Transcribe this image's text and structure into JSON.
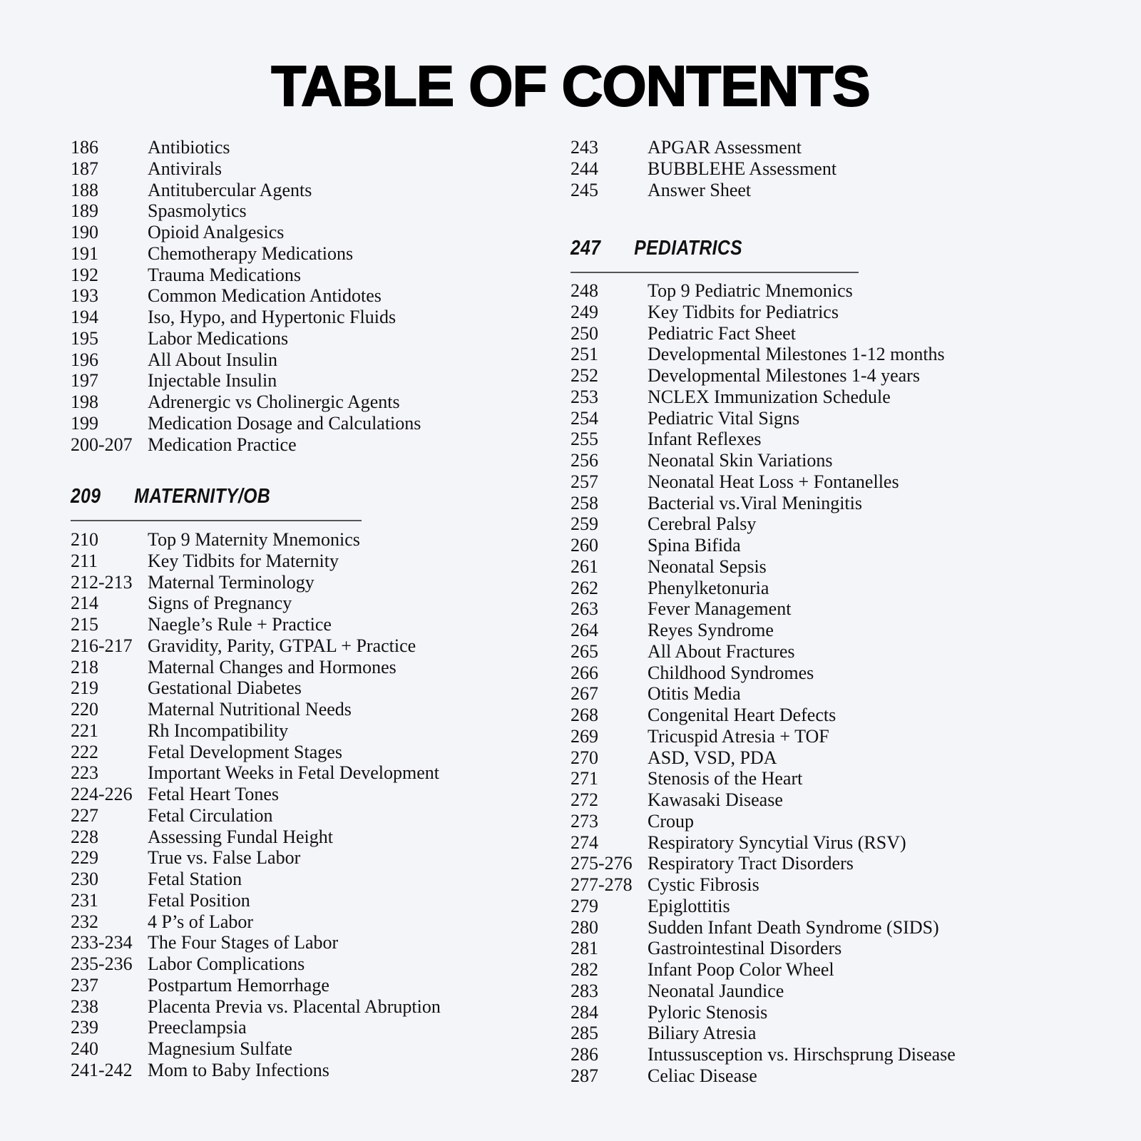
{
  "title": "TABLE OF CONTENTS",
  "left_column": {
    "items": [
      {
        "page": "186",
        "title": "Antibiotics"
      },
      {
        "page": "187",
        "title": "Antivirals"
      },
      {
        "page": "188",
        "title": "Antitubercular Agents"
      },
      {
        "page": "189",
        "title": "Spasmolytics"
      },
      {
        "page": "190",
        "title": "Opioid Analgesics"
      },
      {
        "page": "191",
        "title": "Chemotherapy Medications"
      },
      {
        "page": "192",
        "title": "Trauma Medications"
      },
      {
        "page": "193",
        "title": "Common Medication Antidotes"
      },
      {
        "page": "194",
        "title": "Iso, Hypo, and Hypertonic Fluids"
      },
      {
        "page": "195",
        "title": "Labor Medications"
      },
      {
        "page": "196",
        "title": "All About Insulin"
      },
      {
        "page": "197",
        "title": "Injectable Insulin"
      },
      {
        "page": "198",
        "title": "Adrenergic vs Cholinergic Agents"
      },
      {
        "page": "199",
        "title": "Medication Dosage and Calculations"
      },
      {
        "page": "200-207",
        "title": "Medication Practice"
      }
    ],
    "section": {
      "page": "209",
      "title": "MATERNITY/OB"
    },
    "section_items": [
      {
        "page": "210",
        "title": "Top 9 Maternity Mnemonics"
      },
      {
        "page": "211",
        "title": "Key Tidbits for Maternity"
      },
      {
        "page": "212-213",
        "title": "Maternal Terminology"
      },
      {
        "page": "214",
        "title": "Signs of Pregnancy"
      },
      {
        "page": "215",
        "title": "Naegle’s Rule + Practice"
      },
      {
        "page": "216-217",
        "title": "Gravidity, Parity, GTPAL + Practice"
      },
      {
        "page": "218",
        "title": "Maternal Changes and Hormones"
      },
      {
        "page": "219",
        "title": "Gestational Diabetes"
      },
      {
        "page": "220",
        "title": "Maternal Nutritional Needs"
      },
      {
        "page": "221",
        "title": "Rh Incompatibility"
      },
      {
        "page": "222",
        "title": "Fetal Development Stages"
      },
      {
        "page": "223",
        "title": "Important Weeks in Fetal Development"
      },
      {
        "page": "224-226",
        "title": "Fetal Heart Tones"
      },
      {
        "page": "227",
        "title": "Fetal Circulation"
      },
      {
        "page": "228",
        "title": "Assessing Fundal Height"
      },
      {
        "page": "229",
        "title": "True vs. False Labor"
      },
      {
        "page": "230",
        "title": "Fetal Station"
      },
      {
        "page": "231",
        "title": "Fetal Position"
      },
      {
        "page": "232",
        "title": "4 P’s of Labor"
      },
      {
        "page": "233-234",
        "title": "The Four Stages of Labor"
      },
      {
        "page": "235-236",
        "title": "Labor Complications"
      },
      {
        "page": "237",
        "title": "Postpartum Hemorrhage"
      },
      {
        "page": "238",
        "title": "Placenta Previa vs. Placental Abruption"
      },
      {
        "page": "239",
        "title": "Preeclampsia"
      },
      {
        "page": "240",
        "title": "Magnesium Sulfate"
      },
      {
        "page": "241-242",
        "title": "Mom to Baby Infections"
      }
    ]
  },
  "right_column": {
    "items": [
      {
        "page": "243",
        "title": "APGAR Assessment"
      },
      {
        "page": "244",
        "title": "BUBBLEHE Assessment"
      },
      {
        "page": "245",
        "title": "Answer Sheet"
      }
    ],
    "section": {
      "page": "247",
      "title": "PEDIATRICS"
    },
    "section_items": [
      {
        "page": "248",
        "title": "Top 9 Pediatric Mnemonics"
      },
      {
        "page": "249",
        "title": "Key Tidbits for Pediatrics"
      },
      {
        "page": "250",
        "title": "Pediatric Fact Sheet"
      },
      {
        "page": "251",
        "title": "Developmental Milestones 1-12 months"
      },
      {
        "page": "252",
        "title": "Developmental Milestones 1-4 years"
      },
      {
        "page": "253",
        "title": "NCLEX Immunization Schedule"
      },
      {
        "page": "254",
        "title": "Pediatric Vital Signs"
      },
      {
        "page": "255",
        "title": "Infant Reflexes"
      },
      {
        "page": "256",
        "title": "Neonatal Skin Variations"
      },
      {
        "page": "257",
        "title": "Neonatal Heat Loss + Fontanelles"
      },
      {
        "page": "258",
        "title": "Bacterial vs.Viral Meningitis"
      },
      {
        "page": "259",
        "title": "Cerebral Palsy"
      },
      {
        "page": "260",
        "title": "Spina Bifida"
      },
      {
        "page": "261",
        "title": "Neonatal Sepsis"
      },
      {
        "page": "262",
        "title": "Phenylketonuria"
      },
      {
        "page": "263",
        "title": "Fever Management"
      },
      {
        "page": "264",
        "title": "Reyes Syndrome"
      },
      {
        "page": "265",
        "title": "All About Fractures"
      },
      {
        "page": "266",
        "title": "Childhood Syndromes"
      },
      {
        "page": "267",
        "title": "Otitis Media"
      },
      {
        "page": "268",
        "title": "Congenital Heart Defects"
      },
      {
        "page": "269",
        "title": "Tricuspid Atresia + TOF"
      },
      {
        "page": "270",
        "title": "ASD, VSD, PDA"
      },
      {
        "page": "271",
        "title": "Stenosis of the Heart"
      },
      {
        "page": "272",
        "title": "Kawasaki Disease"
      },
      {
        "page": "273",
        "title": "Croup"
      },
      {
        "page": "274",
        "title": "Respiratory Syncytial Virus (RSV)"
      },
      {
        "page": "275-276",
        "title": "Respiratory Tract Disorders"
      },
      {
        "page": "277-278",
        "title": "Cystic Fibrosis"
      },
      {
        "page": "279",
        "title": "Epiglottitis"
      },
      {
        "page": "280",
        "title": "Sudden Infant Death Syndrome (SIDS)"
      },
      {
        "page": "281",
        "title": "Gastrointestinal Disorders"
      },
      {
        "page": "282",
        "title": "Infant Poop Color Wheel"
      },
      {
        "page": "283",
        "title": "Neonatal Jaundice"
      },
      {
        "page": "284",
        "title": "Pyloric Stenosis"
      },
      {
        "page": "285",
        "title": "Biliary Atresia"
      },
      {
        "page": "286",
        "title": "Intussusception vs. Hirschsprung Disease"
      },
      {
        "page": "287",
        "title": "Celiac Disease"
      }
    ]
  }
}
